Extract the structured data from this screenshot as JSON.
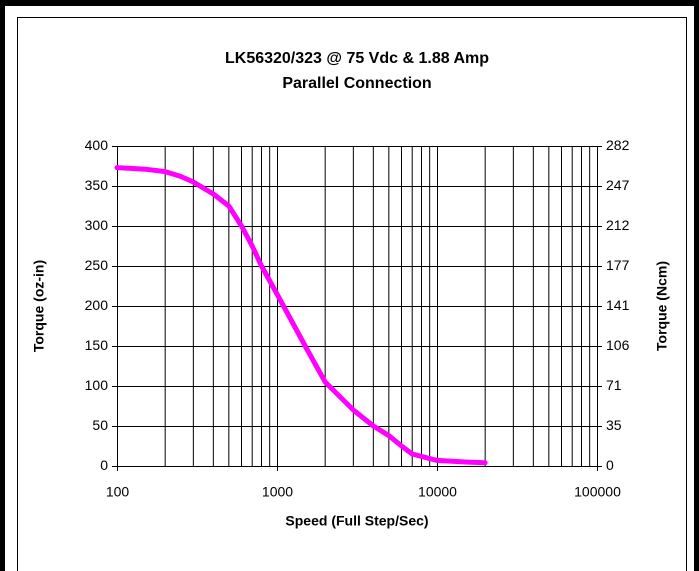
{
  "chart_data": {
    "type": "line",
    "title": "LK56320/323 @ 75 Vdc & 1.88 Amp",
    "subtitle": "Parallel Connection",
    "x_label": "Speed (Full Step/Sec)",
    "y_label": "Torque (oz-in)",
    "y2_label": "Torque (Ncm)",
    "x": [
      100,
      150,
      200,
      250,
      300,
      400,
      500,
      600,
      700,
      800,
      1000,
      1500,
      2000,
      3000,
      4000,
      5000,
      6000,
      7000,
      10000,
      15000,
      20000
    ],
    "series": [
      {
        "name": "Torque",
        "color": "#ff00ff",
        "values": [
          373,
          371,
          368,
          362,
          355,
          340,
          325,
          300,
          275,
          250,
          215,
          150,
          105,
          70,
          50,
          38,
          25,
          15,
          7,
          5,
          4
        ]
      }
    ],
    "x_scale": "log",
    "xlim": [
      100,
      100000
    ],
    "xticks": [
      100,
      1000,
      10000,
      100000
    ],
    "ylim": [
      0,
      400
    ],
    "yticks": [
      0,
      50,
      100,
      150,
      200,
      250,
      300,
      350,
      400
    ],
    "y2lim": [
      0,
      282.4
    ],
    "y2ticks": [
      0,
      {
        "value": 35.3,
        "label": "35"
      },
      {
        "value": 70.6,
        "label": "71"
      },
      {
        "value": 105.9,
        "label": "106"
      },
      {
        "value": 141.2,
        "label": "141"
      },
      {
        "value": 176.5,
        "label": "177"
      },
      {
        "value": 211.8,
        "label": "212"
      },
      {
        "value": 247.1,
        "label": "247"
      },
      {
        "value": 282.4,
        "label": "282"
      }
    ],
    "grid": true,
    "minor_grid": true
  }
}
